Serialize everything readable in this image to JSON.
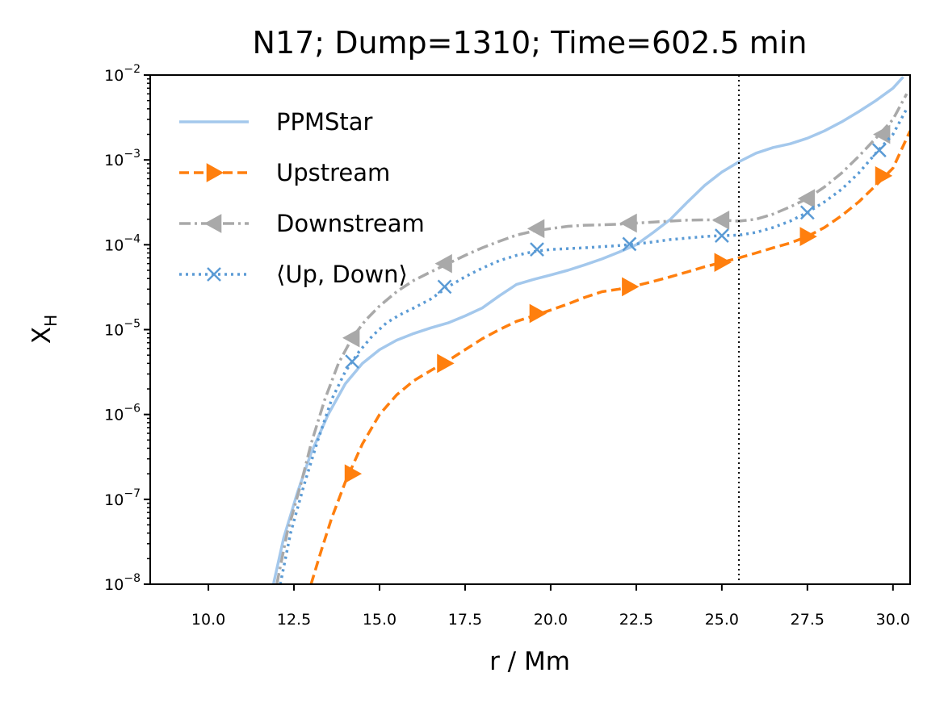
{
  "chart_data": {
    "type": "line",
    "title": "N17; Dump=1310; Time=602.5 min",
    "xlabel": "r / Mm",
    "ylabel": "X",
    "ylabel_sub": "H",
    "xlim": [
      8.3,
      30.5
    ],
    "ylim": [
      1e-08,
      0.01
    ],
    "yscale": "log",
    "xticks": [
      10.0,
      12.5,
      15.0,
      17.5,
      20.0,
      22.5,
      25.0,
      27.5,
      30.0
    ],
    "xtick_labels": [
      "10.0",
      "12.5",
      "15.0",
      "17.5",
      "20.0",
      "22.5",
      "25.0",
      "27.5",
      "30.0"
    ],
    "ytick_exponents": [
      -8,
      -7,
      -6,
      -5,
      -4,
      -3,
      -2
    ],
    "ytick_labels": [
      {
        "base": "10",
        "exp": "−8"
      },
      {
        "base": "10",
        "exp": "−7"
      },
      {
        "base": "10",
        "exp": "−6"
      },
      {
        "base": "10",
        "exp": "−5"
      },
      {
        "base": "10",
        "exp": "−4"
      },
      {
        "base": "10",
        "exp": "−3"
      },
      {
        "base": "10",
        "exp": "−2"
      }
    ],
    "vline_x": 25.5,
    "legend_position": "upper-left",
    "series": [
      {
        "name": "PPMStar",
        "color": "#a4c8ec",
        "dash": "solid",
        "marker": "none",
        "x": [
          11.9,
          12.2,
          12.6,
          13.0,
          13.5,
          14.0,
          14.5,
          15.0,
          15.5,
          16.0,
          16.5,
          17.0,
          17.5,
          18.0,
          18.5,
          19.0,
          19.5,
          20.0,
          20.5,
          21.0,
          21.5,
          22.0,
          22.5,
          23.0,
          23.5,
          24.0,
          24.5,
          25.0,
          25.5,
          26.0,
          26.5,
          27.0,
          27.5,
          28.0,
          28.5,
          29.0,
          29.5,
          30.0,
          30.3
        ],
        "y": [
          1e-08,
          3.5e-08,
          1.2e-07,
          3.5e-07,
          1e-06,
          2.3e-06,
          4e-06,
          5.8e-06,
          7.5e-06,
          9e-06,
          1.05e-05,
          1.2e-05,
          1.45e-05,
          1.8e-05,
          2.5e-05,
          3.4e-05,
          3.9e-05,
          4.4e-05,
          5e-05,
          5.8e-05,
          6.8e-05,
          8.2e-05,
          0.0001,
          0.00014,
          0.0002,
          0.00032,
          0.0005,
          0.00072,
          0.00095,
          0.0012,
          0.0014,
          0.00155,
          0.0018,
          0.0022,
          0.0028,
          0.0037,
          0.005,
          0.007,
          0.0095
        ]
      },
      {
        "name": "Upstream",
        "color": "#ff7f0e",
        "dash": "dashed",
        "marker": "triangle-right",
        "x": [
          13.0,
          13.3,
          13.6,
          14.0,
          14.5,
          15.0,
          15.5,
          16.0,
          16.5,
          17.0,
          17.5,
          18.0,
          18.5,
          19.0,
          19.5,
          20.0,
          20.5,
          21.0,
          21.5,
          22.0,
          22.5,
          23.0,
          23.5,
          24.0,
          24.5,
          25.0,
          25.5,
          26.0,
          26.5,
          27.0,
          27.5,
          28.0,
          28.5,
          29.0,
          29.5,
          30.0,
          30.5
        ],
        "y": [
          1e-08,
          2.5e-08,
          6e-08,
          1.6e-07,
          4.5e-07,
          1e-06,
          1.7e-06,
          2.5e-06,
          3.3e-06,
          4.3e-06,
          5.8e-06,
          7.8e-06,
          1e-05,
          1.25e-05,
          1.45e-05,
          1.7e-05,
          2e-05,
          2.4e-05,
          2.8e-05,
          3e-05,
          3.3e-05,
          3.7e-05,
          4.2e-05,
          4.8e-05,
          5.5e-05,
          6.2e-05,
          7e-05,
          8e-05,
          9.2e-05,
          0.000105,
          0.000125,
          0.00016,
          0.00022,
          0.00032,
          0.0005,
          0.0008,
          0.0022
        ],
        "markers_x": [
          14.2,
          16.9,
          19.6,
          22.3,
          25.0,
          27.5,
          29.7
        ],
        "markers_y": [
          2e-07,
          4e-06,
          1.55e-05,
          3.2e-05,
          6.2e-05,
          0.000125,
          0.00065
        ]
      },
      {
        "name": "Downstream",
        "color": "#a9a9a9",
        "dash": "dashdot",
        "marker": "triangle-left",
        "x": [
          12.0,
          12.3,
          12.7,
          13.0,
          13.4,
          13.8,
          14.2,
          14.6,
          15.0,
          15.5,
          16.0,
          16.5,
          17.0,
          17.5,
          18.0,
          18.5,
          19.0,
          19.5,
          20.0,
          20.5,
          21.0,
          21.5,
          22.0,
          22.5,
          23.0,
          23.5,
          24.0,
          24.5,
          25.0,
          25.5,
          26.0,
          26.5,
          27.0,
          27.5,
          28.0,
          28.5,
          29.0,
          29.5,
          30.0,
          30.4
        ],
        "y": [
          1e-08,
          4e-08,
          1.5e-07,
          4.5e-07,
          1.5e-06,
          4e-06,
          8e-06,
          1.3e-05,
          1.9e-05,
          2.8e-05,
          3.8e-05,
          4.8e-05,
          6e-05,
          7.5e-05,
          9.2e-05,
          0.00011,
          0.00013,
          0.000145,
          0.000155,
          0.000165,
          0.00017,
          0.000172,
          0.000175,
          0.00018,
          0.000185,
          0.00019,
          0.000195,
          0.000197,
          0.000195,
          0.00019,
          0.0002,
          0.00023,
          0.00028,
          0.00035,
          0.00048,
          0.0007,
          0.0011,
          0.0018,
          0.003,
          0.006
        ],
        "markers_x": [
          14.2,
          16.9,
          19.6,
          22.3,
          25.0,
          27.5,
          29.7
        ],
        "markers_y": [
          8e-06,
          6e-05,
          0.000155,
          0.00018,
          0.000195,
          0.00035,
          0.002
        ]
      },
      {
        "name": "⟨Up, Down⟩",
        "color": "#5b9bd5",
        "dash": "dotted",
        "marker": "x",
        "x": [
          12.1,
          12.4,
          12.8,
          13.2,
          13.6,
          14.0,
          14.4,
          14.8,
          15.2,
          15.6,
          16.0,
          16.5,
          17.0,
          17.5,
          18.0,
          18.5,
          19.0,
          19.5,
          20.0,
          20.5,
          21.0,
          21.5,
          22.0,
          22.5,
          23.0,
          23.5,
          24.0,
          24.5,
          25.0,
          25.5,
          26.0,
          26.5,
          27.0,
          27.5,
          28.0,
          28.5,
          29.0,
          29.5,
          30.0,
          30.4
        ],
        "y": [
          1e-08,
          4e-08,
          1.5e-07,
          5e-07,
          1.5e-06,
          3.2e-06,
          5.5e-06,
          8.5e-06,
          1.2e-05,
          1.5e-05,
          1.8e-05,
          2.3e-05,
          3.2e-05,
          4.2e-05,
          5.3e-05,
          6.5e-05,
          7.5e-05,
          8.3e-05,
          8.8e-05,
          9e-05,
          9.2e-05,
          9.5e-05,
          9.8e-05,
          0.000102,
          0.000108,
          0.000115,
          0.00012,
          0.000125,
          0.000128,
          0.00013,
          0.00014,
          0.00016,
          0.00019,
          0.00024,
          0.00032,
          0.00045,
          0.0007,
          0.0012,
          0.002,
          0.004
        ],
        "markers_x": [
          14.2,
          16.9,
          19.6,
          22.3,
          25.0,
          27.5,
          29.6
        ],
        "markers_y": [
          4.2e-06,
          3.2e-05,
          8.8e-05,
          0.000102,
          0.000128,
          0.00024,
          0.0013
        ]
      }
    ]
  }
}
